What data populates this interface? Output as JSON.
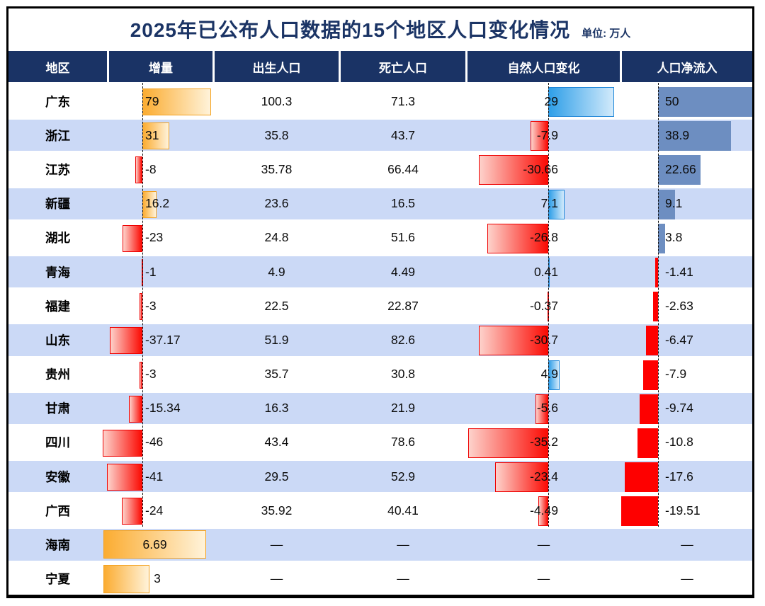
{
  "title": "2025年已公布人口数据的15个地区人口变化情况",
  "unit_label": "单位: 万人",
  "columns": [
    "地区",
    "增量",
    "出生人口",
    "死亡人口",
    "自然人口变化",
    "人口净流入"
  ],
  "colors": {
    "header_bg": "#1a3365",
    "title_color": "#1b3465",
    "stripe_row": "#cbd9f6",
    "orange_bar_start": "#fbac31",
    "orange_bar_end": "#fff3da",
    "orange_border": "#f3a11f",
    "red_bar_light": "#fdd2cb",
    "red_bar_strong": "#fb0b04",
    "red_border": "#ee0000",
    "blue_bar_strong": "#2f9fe8",
    "blue_bar_light": "#d2eafb",
    "blue_border": "#1d86d8",
    "steel_blue_bar": "#6d8ec1",
    "net_red_bar": "#fe0000"
  },
  "chart_data": {
    "type": "table",
    "title": "2025年已公布人口数据的15个地区人口变化情况",
    "unit": "万人",
    "columns": [
      "地区",
      "增量",
      "出生人口",
      "死亡人口",
      "自然人口变化",
      "人口净流入"
    ],
    "rows": [
      {
        "region": "广东",
        "increment": {
          "value": 79,
          "label": "79"
        },
        "births": "100.3",
        "deaths": "71.3",
        "natural": {
          "value": 29,
          "label": "29"
        },
        "net": {
          "value": 50,
          "label": "50"
        }
      },
      {
        "region": "浙江",
        "increment": {
          "value": 31,
          "label": "31"
        },
        "births": "35.8",
        "deaths": "43.7",
        "natural": {
          "value": -7.9,
          "label": "-7.9"
        },
        "net": {
          "value": 38.9,
          "label": "38.9"
        }
      },
      {
        "region": "江苏",
        "increment": {
          "value": -8,
          "label": "-8"
        },
        "births": "35.78",
        "deaths": "66.44",
        "natural": {
          "value": -30.66,
          "label": "-30.66"
        },
        "net": {
          "value": 22.66,
          "label": "22.66"
        }
      },
      {
        "region": "新疆",
        "increment": {
          "value": 16.2,
          "label": "16.2"
        },
        "births": "23.6",
        "deaths": "16.5",
        "natural": {
          "value": 7.1,
          "label": "7.1"
        },
        "net": {
          "value": 9.1,
          "label": "9.1"
        }
      },
      {
        "region": "湖北",
        "increment": {
          "value": -23,
          "label": "-23"
        },
        "births": "24.8",
        "deaths": "51.6",
        "natural": {
          "value": -26.8,
          "label": "-26.8"
        },
        "net": {
          "value": 3.8,
          "label": "3.8"
        }
      },
      {
        "region": "青海",
        "increment": {
          "value": -1,
          "label": "-1"
        },
        "births": "4.9",
        "deaths": "4.49",
        "natural": {
          "value": 0.41,
          "label": "0.41"
        },
        "net": {
          "value": -1.41,
          "label": "-1.41"
        }
      },
      {
        "region": "福建",
        "increment": {
          "value": -3,
          "label": "-3"
        },
        "births": "22.5",
        "deaths": "22.87",
        "natural": {
          "value": -0.37,
          "label": "-0.37"
        },
        "net": {
          "value": -2.63,
          "label": "-2.63"
        }
      },
      {
        "region": "山东",
        "increment": {
          "value": -37.17,
          "label": "-37.17"
        },
        "births": "51.9",
        "deaths": "82.6",
        "natural": {
          "value": -30.7,
          "label": "-30.7"
        },
        "net": {
          "value": -6.47,
          "label": "-6.47"
        }
      },
      {
        "region": "贵州",
        "increment": {
          "value": -3,
          "label": "-3"
        },
        "births": "35.7",
        "deaths": "30.8",
        "natural": {
          "value": 4.9,
          "label": "4.9"
        },
        "net": {
          "value": -7.9,
          "label": "-7.9"
        }
      },
      {
        "region": "甘肃",
        "increment": {
          "value": -15.34,
          "label": "-15.34"
        },
        "births": "16.3",
        "deaths": "21.9",
        "natural": {
          "value": -5.6,
          "label": "-5.6"
        },
        "net": {
          "value": -9.74,
          "label": "-9.74"
        }
      },
      {
        "region": "四川",
        "increment": {
          "value": -46,
          "label": "-46"
        },
        "births": "43.4",
        "deaths": "78.6",
        "natural": {
          "value": -35.2,
          "label": "-35.2"
        },
        "net": {
          "value": -10.8,
          "label": "-10.8"
        }
      },
      {
        "region": "安徽",
        "increment": {
          "value": -41,
          "label": "-41"
        },
        "births": "29.5",
        "deaths": "52.9",
        "natural": {
          "value": -23.4,
          "label": "-23.4"
        },
        "net": {
          "value": -17.6,
          "label": "-17.6"
        }
      },
      {
        "region": "广西",
        "increment": {
          "value": -24,
          "label": "-24"
        },
        "births": "35.92",
        "deaths": "40.41",
        "natural": {
          "value": -4.49,
          "label": "-4.49"
        },
        "net": {
          "value": -19.51,
          "label": "-19.51"
        }
      },
      {
        "region": "海南",
        "increment": {
          "value": 6.69,
          "label": "6.69",
          "wide": true
        },
        "births": "—",
        "deaths": "—",
        "natural": {
          "value": null,
          "label": "—"
        },
        "net": {
          "value": null,
          "label": "—"
        }
      },
      {
        "region": "宁夏",
        "increment": {
          "value": 3,
          "label": "3",
          "wide": true
        },
        "births": "—",
        "deaths": "—",
        "natural": {
          "value": null,
          "label": "—"
        },
        "net": {
          "value": null,
          "label": "—"
        }
      }
    ]
  }
}
